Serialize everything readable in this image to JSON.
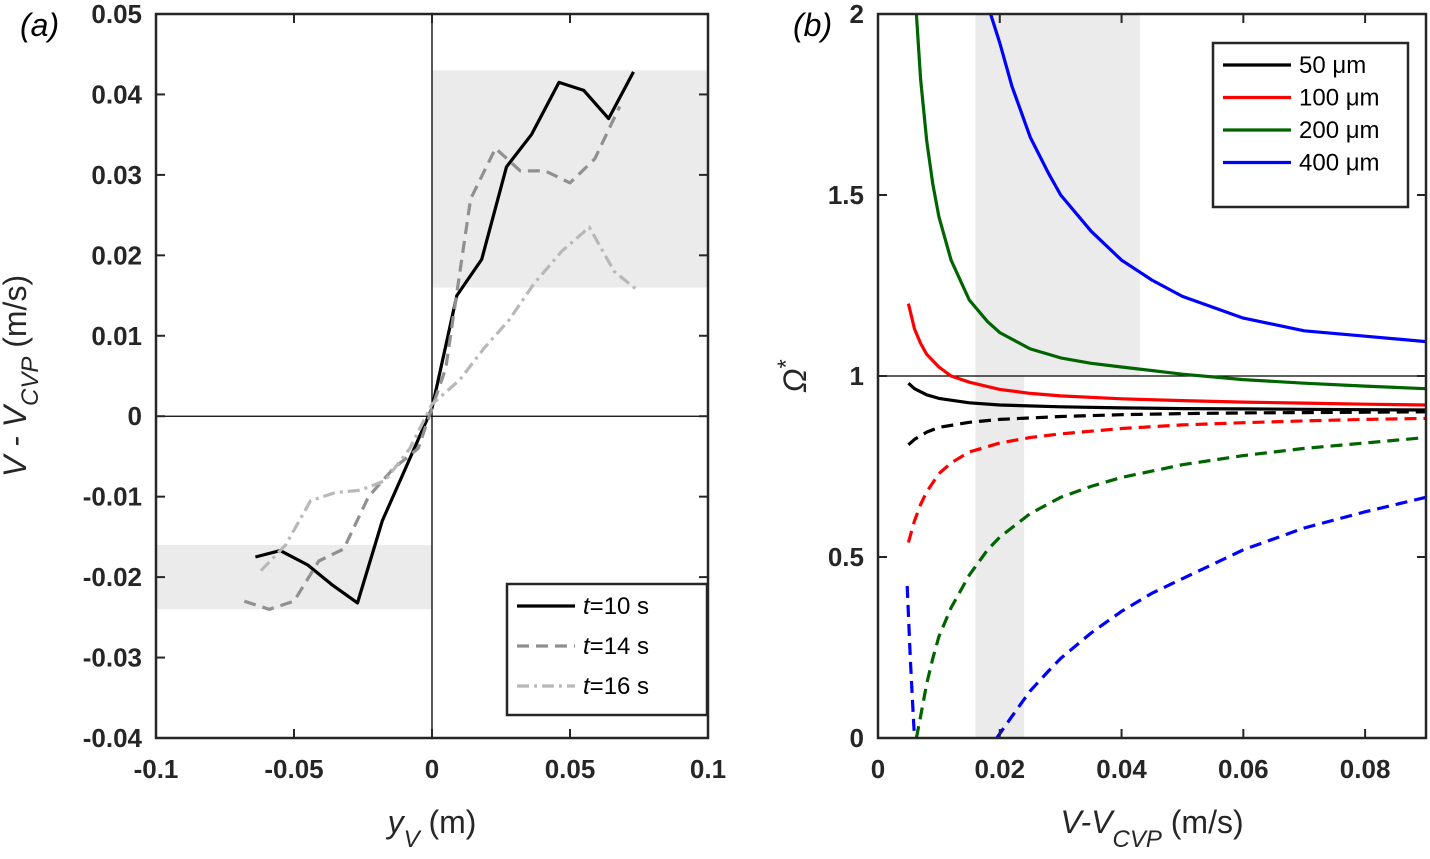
{
  "chart_data": [
    {
      "panel_label": "(a)",
      "type": "line",
      "xlabel": {
        "main": "y",
        "sub": "V",
        "unit": "(m)"
      },
      "ylabel": {
        "main": "V - V",
        "sub": "CVP",
        "unit": "(m/s)"
      },
      "xlim": [
        -0.1,
        0.1
      ],
      "ylim": [
        -0.04,
        0.05
      ],
      "xticks": [
        -0.1,
        -0.05,
        0,
        0.05,
        0.1
      ],
      "xtick_labels": [
        "-0.1",
        "-0.05",
        "0",
        "0.05",
        "0.1"
      ],
      "yticks": [
        -0.04,
        -0.03,
        -0.02,
        -0.01,
        0,
        0.01,
        0.02,
        0.03,
        0.04,
        0.05
      ],
      "ytick_labels": [
        "-0.04",
        "-0.03",
        "-0.02",
        "-0.01",
        "0",
        "0.01",
        "0.02",
        "0.03",
        "0.04",
        "0.05"
      ],
      "shaded_regions": [
        {
          "x": [
            0,
            0.1
          ],
          "y": [
            0.016,
            0.043
          ]
        },
        {
          "x": [
            -0.1,
            0
          ],
          "y": [
            -0.024,
            -0.016
          ]
        }
      ],
      "reference_lines": {
        "x": 0,
        "y": 0
      },
      "legend_position": "bottom-right",
      "series": [
        {
          "name": "t=10 s",
          "name_italic": "t",
          "name_rest": "=10 s",
          "color": "#000000",
          "dash": "solid",
          "x": [
            -0.064,
            -0.055,
            -0.045,
            -0.036,
            -0.027,
            -0.018,
            -0.009,
            0,
            0.009,
            0.018,
            0.027,
            0.036,
            0.046,
            0.055,
            0.064,
            0.073
          ],
          "y": [
            -0.0175,
            -0.0167,
            -0.0185,
            -0.021,
            -0.0232,
            -0.013,
            -0.006,
            0.001,
            0.015,
            0.0195,
            0.031,
            0.035,
            0.0415,
            0.0405,
            0.037,
            0.0428
          ]
        },
        {
          "name": "t=14 s",
          "name_italic": "t",
          "name_rest": "=14 s",
          "color": "#909090",
          "dash": "dashed",
          "x": [
            -0.068,
            -0.059,
            -0.05,
            -0.041,
            -0.032,
            -0.023,
            -0.014,
            -0.005,
            0.005,
            0.014,
            0.023,
            0.032,
            0.041,
            0.05,
            0.059,
            0.068
          ],
          "y": [
            -0.023,
            -0.024,
            -0.023,
            -0.018,
            -0.0165,
            -0.01,
            -0.0065,
            -0.004,
            0.006,
            0.027,
            0.0333,
            0.0305,
            0.0305,
            0.029,
            0.032,
            0.0385
          ]
        },
        {
          "name": "t=16 s",
          "name_italic": "t",
          "name_rest": "=16 s",
          "color": "#b8b8b8",
          "dash": "dashdot",
          "x": [
            -0.062,
            -0.053,
            -0.044,
            -0.035,
            -0.026,
            -0.017,
            -0.008,
            0,
            0.01,
            0.019,
            0.028,
            0.037,
            0.047,
            0.057,
            0.066,
            0.075
          ],
          "y": [
            -0.0192,
            -0.016,
            -0.0105,
            -0.0095,
            -0.0092,
            -0.008,
            -0.004,
            0.0015,
            0.0045,
            0.0085,
            0.012,
            0.0165,
            0.0205,
            0.0235,
            0.018,
            0.0155
          ]
        }
      ]
    },
    {
      "panel_label": "(b)",
      "type": "line",
      "xlabel": {
        "main": "V-V",
        "sub": "CVP",
        "unit": "(m/s)"
      },
      "ylabel": {
        "main": "Ω",
        "sup": "*"
      },
      "xlim": [
        0,
        0.09
      ],
      "ylim": [
        0,
        2
      ],
      "xticks": [
        0,
        0.02,
        0.04,
        0.06,
        0.08
      ],
      "xtick_labels": [
        "0",
        "0.02",
        "0.04",
        "0.06",
        "0.08"
      ],
      "yticks": [
        0,
        0.5,
        1,
        1.5,
        2
      ],
      "ytick_labels": [
        "0",
        "0.5",
        "1",
        "1.5",
        "2"
      ],
      "shaded_regions": [
        {
          "x": [
            0.016,
            0.043
          ],
          "y": [
            1,
            2
          ]
        },
        {
          "x": [
            0.016,
            0.024
          ],
          "y": [
            0,
            1
          ]
        }
      ],
      "reference_lines": {
        "y": 1
      },
      "legend_position": "top-right",
      "series": [
        {
          "name": "50 μm",
          "color": "#000000",
          "dash": "solid",
          "x": [
            0.005,
            0.006,
            0.008,
            0.01,
            0.015,
            0.02,
            0.03,
            0.04,
            0.05,
            0.06,
            0.07,
            0.08,
            0.09
          ],
          "y": [
            0.98,
            0.965,
            0.948,
            0.938,
            0.926,
            0.92,
            0.915,
            0.912,
            0.91,
            0.909,
            0.908,
            0.907,
            0.906
          ]
        },
        {
          "name": "100 μm",
          "color": "#ff0000",
          "dash": "solid",
          "x": [
            0.005,
            0.006,
            0.007,
            0.008,
            0.01,
            0.012,
            0.015,
            0.02,
            0.025,
            0.03,
            0.04,
            0.05,
            0.06,
            0.07,
            0.08,
            0.09
          ],
          "y": [
            1.2,
            1.13,
            1.09,
            1.06,
            1.025,
            1.0,
            0.983,
            0.963,
            0.952,
            0.945,
            0.937,
            0.932,
            0.928,
            0.925,
            0.922,
            0.92
          ]
        },
        {
          "name": "200 μm",
          "color": "#006400",
          "dash": "solid",
          "x": [
            0.0063,
            0.007,
            0.008,
            0.009,
            0.01,
            0.012,
            0.015,
            0.018,
            0.02,
            0.025,
            0.03,
            0.035,
            0.04,
            0.05,
            0.06,
            0.07,
            0.08,
            0.09
          ],
          "y": [
            2.0,
            1.82,
            1.65,
            1.53,
            1.44,
            1.32,
            1.21,
            1.15,
            1.12,
            1.075,
            1.05,
            1.035,
            1.025,
            1.005,
            0.99,
            0.98,
            0.972,
            0.965
          ]
        },
        {
          "name": "400 μm",
          "color": "#0000ff",
          "dash": "solid",
          "x": [
            0.0185,
            0.02,
            0.022,
            0.025,
            0.028,
            0.03,
            0.035,
            0.04,
            0.045,
            0.05,
            0.06,
            0.07,
            0.08,
            0.09
          ],
          "y": [
            2.0,
            1.92,
            1.8,
            1.66,
            1.56,
            1.5,
            1.4,
            1.32,
            1.265,
            1.22,
            1.16,
            1.125,
            1.11,
            1.095
          ]
        },
        {
          "name": "",
          "color": "#000000",
          "dash": "dashed",
          "x": [
            0.005,
            0.006,
            0.008,
            0.01,
            0.015,
            0.02,
            0.03,
            0.04,
            0.05,
            0.06,
            0.07,
            0.08,
            0.09
          ],
          "y": [
            0.81,
            0.825,
            0.845,
            0.858,
            0.872,
            0.88,
            0.888,
            0.893,
            0.896,
            0.898,
            0.899,
            0.9,
            0.901
          ]
        },
        {
          "name": "",
          "color": "#ff0000",
          "dash": "dashed",
          "x": [
            0.005,
            0.006,
            0.007,
            0.008,
            0.01,
            0.012,
            0.015,
            0.02,
            0.025,
            0.03,
            0.04,
            0.05,
            0.06,
            0.07,
            0.08,
            0.09
          ],
          "y": [
            0.54,
            0.6,
            0.645,
            0.68,
            0.73,
            0.76,
            0.79,
            0.815,
            0.83,
            0.84,
            0.855,
            0.865,
            0.871,
            0.876,
            0.88,
            0.883
          ]
        },
        {
          "name": "",
          "color": "#006400",
          "dash": "dashed",
          "x": [
            0.0063,
            0.007,
            0.008,
            0.009,
            0.01,
            0.012,
            0.015,
            0.018,
            0.02,
            0.025,
            0.03,
            0.035,
            0.04,
            0.05,
            0.06,
            0.07,
            0.08,
            0.09
          ],
          "y": [
            0.0,
            0.06,
            0.15,
            0.22,
            0.28,
            0.36,
            0.45,
            0.52,
            0.555,
            0.62,
            0.665,
            0.695,
            0.72,
            0.755,
            0.78,
            0.8,
            0.815,
            0.83
          ]
        },
        {
          "name": "",
          "color": "#0000ff",
          "dash": "dashed",
          "x": [
            0.0048,
            0.0053,
            0.0058,
            0.006
          ],
          "y": [
            0.42,
            0.22,
            0.06,
            0.0
          ]
        },
        {
          "name": "",
          "color": "#0000ff",
          "dash": "dashed",
          "x": [
            0.0195,
            0.022,
            0.025,
            0.028,
            0.03,
            0.035,
            0.04,
            0.045,
            0.05,
            0.06,
            0.07,
            0.08,
            0.09
          ],
          "y": [
            0.0,
            0.06,
            0.13,
            0.185,
            0.22,
            0.29,
            0.35,
            0.4,
            0.44,
            0.52,
            0.58,
            0.625,
            0.665
          ]
        }
      ]
    }
  ]
}
